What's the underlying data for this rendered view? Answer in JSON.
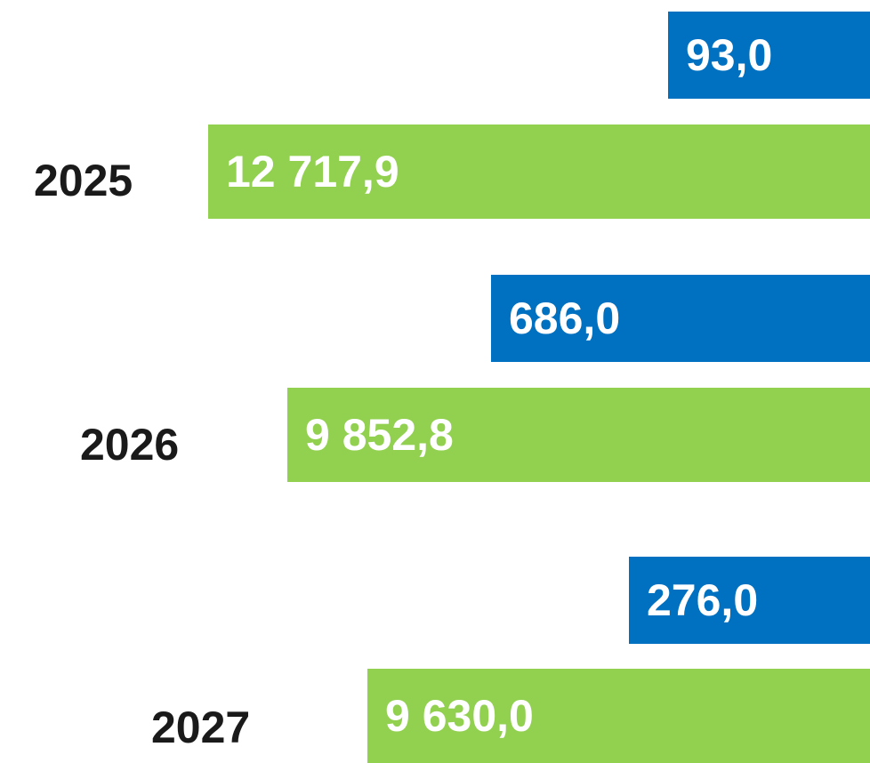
{
  "rows": [
    {
      "year": "2025",
      "top": "93,0",
      "bottom": "12 717,9"
    },
    {
      "year": "2026",
      "top": "686,0",
      "bottom": "9 852,8"
    },
    {
      "year": "2027",
      "top": "276,0",
      "bottom": "9 630,0"
    }
  ]
}
